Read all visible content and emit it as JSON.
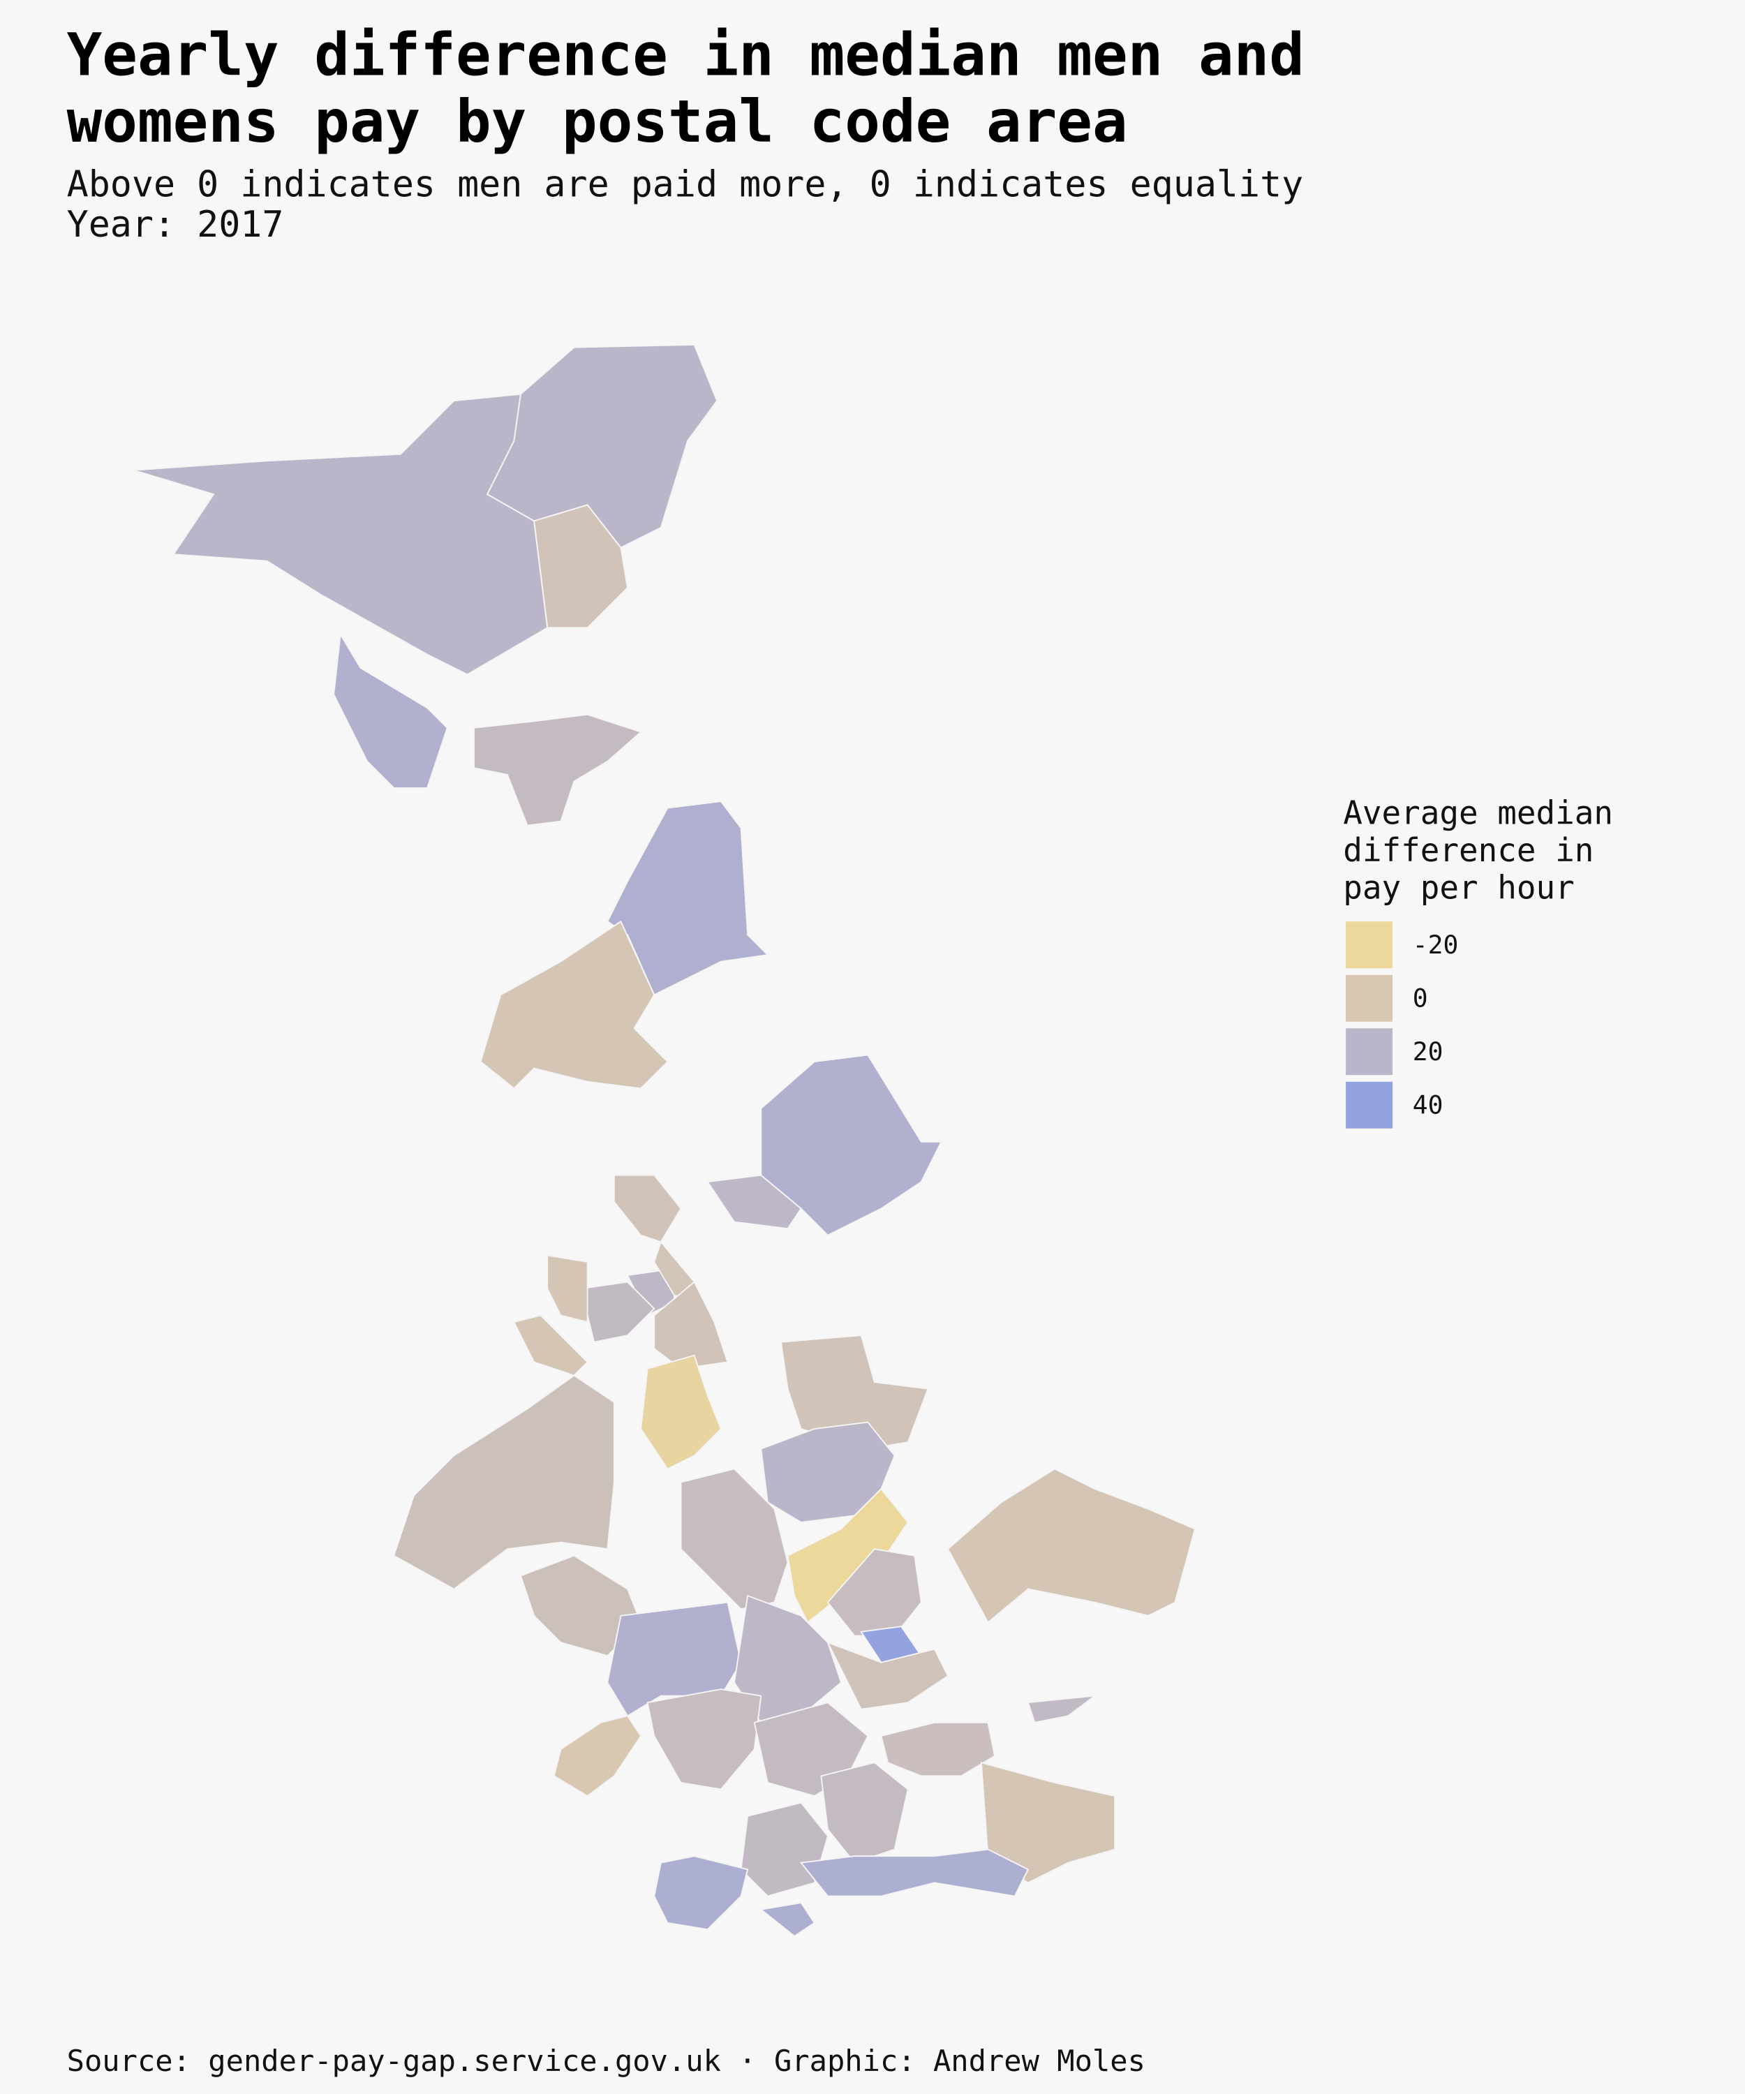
{
  "chart_data": {
    "type": "choropleth",
    "title": [
      "Yearly difference in median men and",
      "womens pay by postal code area"
    ],
    "subtitle": [
      "Above 0 indicates men are paid more, 0 indicates equality",
      "Year: 2017"
    ],
    "legend": {
      "title": [
        "Average median",
        "difference in",
        "pay per hour"
      ],
      "values": [
        -20,
        0,
        20,
        40
      ],
      "colors": [
        "#ecd89a",
        "#d8c8b2",
        "#bbb5c9",
        "#93a3e0"
      ]
    },
    "regions": {
      "values": [
        20,
        20,
        5,
        14,
        18,
        26,
        3,
        25,
        18,
        5,
        4,
        15,
        3,
        25,
        5,
        3,
        -15,
        5,
        8,
        20,
        3,
        12,
        -22,
        12,
        45,
        8,
        25,
        18,
        6,
        12,
        0,
        14,
        10,
        3,
        15,
        14,
        27,
        27,
        27,
        16
      ]
    },
    "source": "Source: gender-pay-gap.service.gov.uk · Graphic: Andrew Moles"
  }
}
